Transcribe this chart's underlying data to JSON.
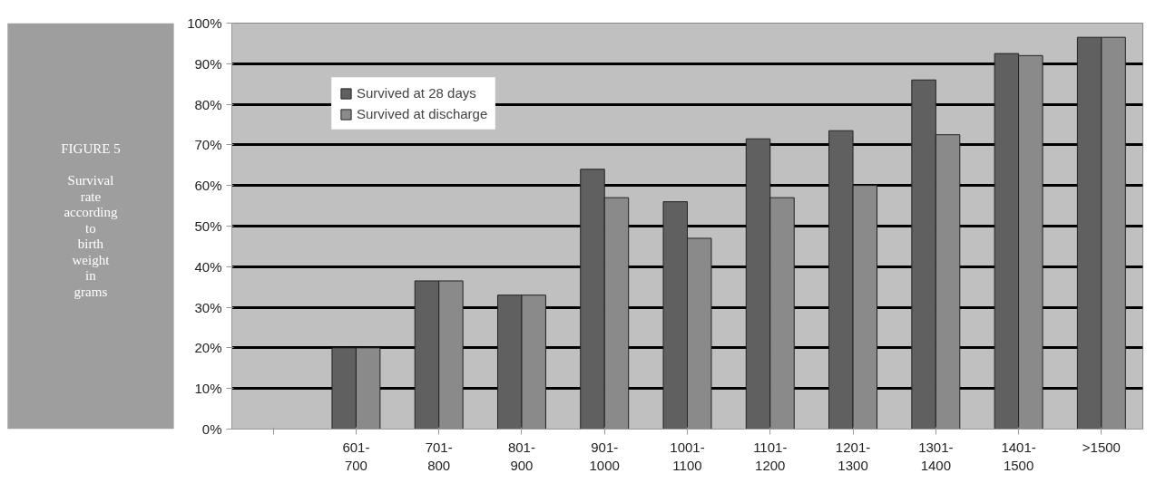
{
  "chart_data": {
    "type": "bar",
    "title": "FIGURE 5",
    "subtitle": "Survival rate according to birth weight in grams",
    "categories": [
      null,
      "601-700",
      "701-800",
      "801-900",
      "901-1000",
      "1001-1100",
      "1101-1200",
      "1201-1300",
      "1301-1400",
      "1401-1500",
      ">1500"
    ],
    "series": [
      {
        "name": "Survived at 28 days",
        "color": "#606060",
        "values": [
          null,
          20,
          36.5,
          33,
          64,
          56,
          71.5,
          73.5,
          86,
          92.5,
          96.5
        ]
      },
      {
        "name": "Survived at discharge",
        "color": "#8a8a8a",
        "values": [
          null,
          20,
          36.5,
          33,
          57,
          47,
          57,
          60,
          72.5,
          92,
          96.5
        ]
      }
    ],
    "ylim": [
      0,
      100
    ],
    "yticks": [
      {
        "value": 0,
        "label": "0%"
      },
      {
        "value": 10,
        "label": "10%"
      },
      {
        "value": 20,
        "label": "20%"
      },
      {
        "value": 30,
        "label": "30%"
      },
      {
        "value": 40,
        "label": "40%"
      },
      {
        "value": 50,
        "label": "50%"
      },
      {
        "value": 60,
        "label": "60%"
      },
      {
        "value": 70,
        "label": "70%"
      },
      {
        "value": 80,
        "label": "80%"
      },
      {
        "value": 90,
        "label": "90%"
      },
      {
        "value": 100,
        "label": "100%"
      }
    ],
    "grid": "y",
    "legend": "top left"
  }
}
